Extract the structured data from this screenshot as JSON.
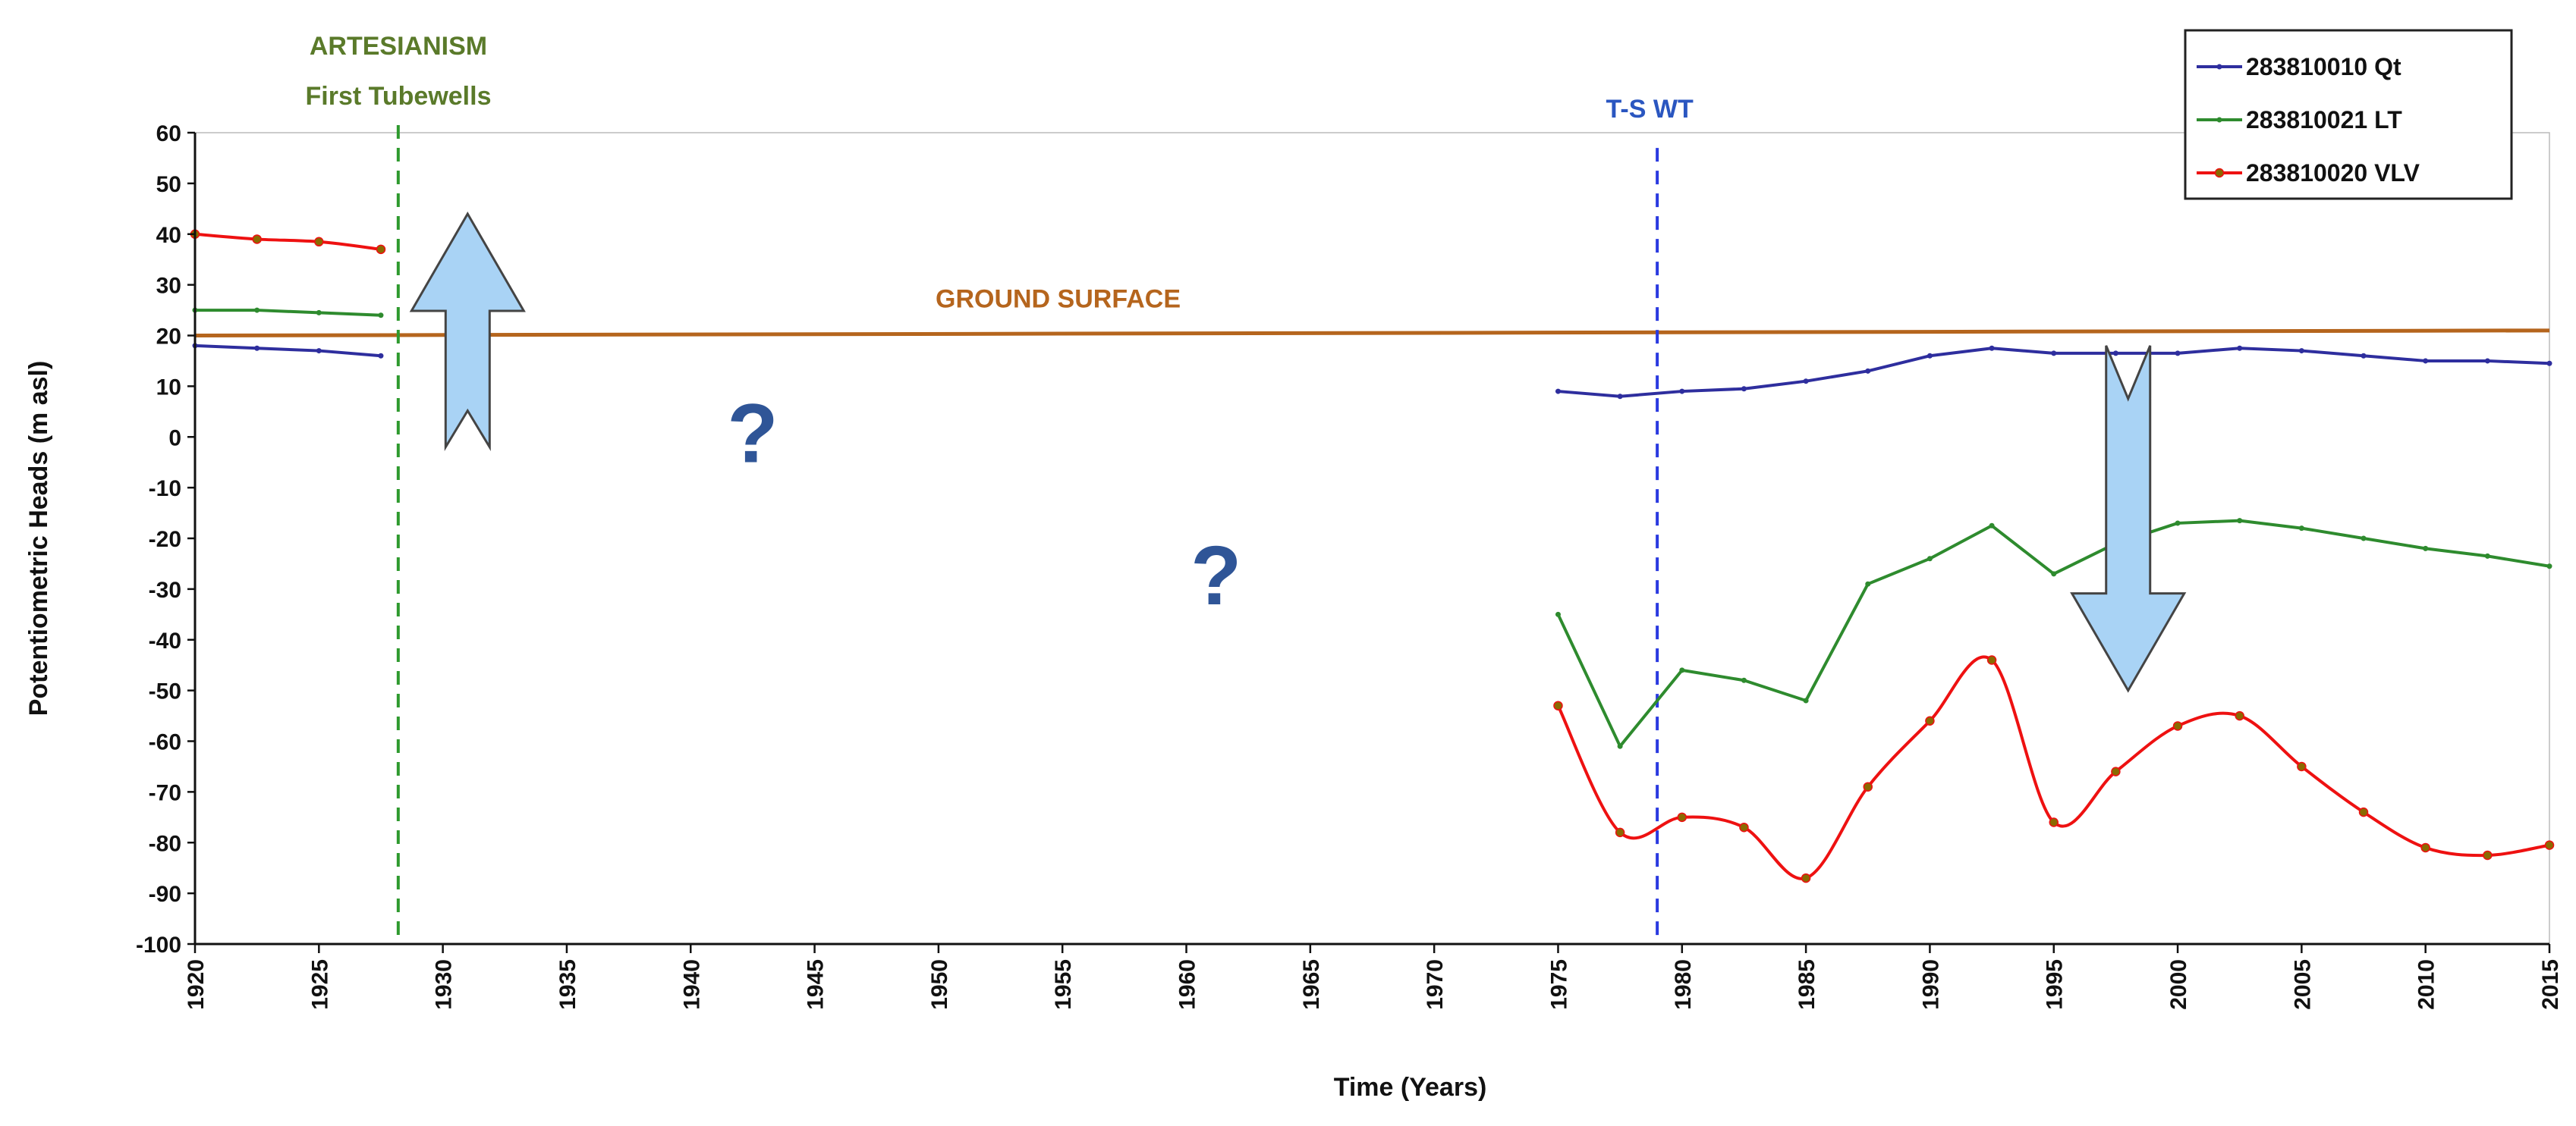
{
  "colors": {
    "qt": "#2e2e9e",
    "lt": "#2e8b2e",
    "vlv": "#ee1111",
    "vlv_marker": "#8a6a00",
    "ground": "#b5651d",
    "artesian_line": "#2e9a2e",
    "artesian_text": "#5a7a2a",
    "tswt_line": "#2a3ae0",
    "tswt_text": "#2a56c0",
    "arrow_fill": "#a9d3f5",
    "arrow_stroke": "#444444",
    "qmark": "#2f5597"
  },
  "chart_data": {
    "type": "line",
    "title": "",
    "xlabel": "Time  (Years)",
    "ylabel": "Potentiometric  Heads  (m asl)",
    "xlim": [
      1920,
      2015
    ],
    "ylim": [
      -100,
      60
    ],
    "x_ticks": [
      "1920",
      "1925",
      "1930",
      "1935",
      "1940",
      "1945",
      "1950",
      "1955",
      "1960",
      "1965",
      "1970",
      "1975",
      "1980",
      "1985",
      "1990",
      "1995",
      "2000",
      "2005",
      "2010",
      "2015"
    ],
    "y_ticks": [
      "60",
      "50",
      "40",
      "30",
      "20",
      "10",
      "0",
      "-10",
      "-20",
      "-30",
      "-40",
      "-50",
      "-60",
      "-70",
      "-80",
      "-90",
      "-100"
    ],
    "legend_position": "top-right",
    "series": [
      {
        "name": "283810010 Qt",
        "color_key": "qt",
        "segments": [
          [
            [
              1920,
              18
            ],
            [
              1922.5,
              17.5
            ],
            [
              1925,
              17
            ],
            [
              1927.5,
              16
            ]
          ],
          [
            [
              1975,
              9
            ],
            [
              1977.5,
              8
            ],
            [
              1980,
              9
            ],
            [
              1982.5,
              9.5
            ],
            [
              1985,
              11
            ],
            [
              1987.5,
              13
            ],
            [
              1990,
              16
            ],
            [
              1992.5,
              17.5
            ],
            [
              1995,
              16.5
            ],
            [
              1997.5,
              16.5
            ],
            [
              2000,
              16.5
            ],
            [
              2002.5,
              17.5
            ],
            [
              2005,
              17
            ],
            [
              2007.5,
              16
            ],
            [
              2010,
              15
            ],
            [
              2012.5,
              15
            ],
            [
              2015,
              14.5
            ]
          ]
        ]
      },
      {
        "name": "283810021 LT",
        "color_key": "lt",
        "segments": [
          [
            [
              1920,
              25
            ],
            [
              1922.5,
              25
            ],
            [
              1925,
              24.5
            ],
            [
              1927.5,
              24
            ]
          ],
          [
            [
              1975,
              -35
            ],
            [
              1977.5,
              -61
            ],
            [
              1980,
              -46
            ],
            [
              1982.5,
              -48
            ],
            [
              1985,
              -52
            ],
            [
              1987.5,
              -29
            ],
            [
              1990,
              -24
            ],
            [
              1992.5,
              -17.5
            ],
            [
              1995,
              -27
            ],
            [
              1997.5,
              -21
            ],
            [
              2000,
              -17
            ],
            [
              2002.5,
              -16.5
            ],
            [
              2005,
              -18
            ],
            [
              2007.5,
              -20
            ],
            [
              2010,
              -22
            ],
            [
              2012.5,
              -23.5
            ],
            [
              2015,
              -25.5
            ]
          ]
        ]
      },
      {
        "name": "283810020 VLV",
        "color_key": "vlv",
        "segments": [
          [
            [
              1920,
              40
            ],
            [
              1922.5,
              39
            ],
            [
              1925,
              38.5
            ],
            [
              1927.5,
              37
            ]
          ],
          [
            [
              1975,
              -53
            ],
            [
              1977.5,
              -78
            ],
            [
              1980,
              -75
            ],
            [
              1982.5,
              -77
            ],
            [
              1985,
              -87
            ],
            [
              1987.5,
              -69
            ],
            [
              1990,
              -56
            ],
            [
              1992.5,
              -44
            ],
            [
              1995,
              -76
            ],
            [
              1997.5,
              -66
            ],
            [
              2000,
              -57
            ],
            [
              2002.5,
              -55
            ],
            [
              2005,
              -65
            ],
            [
              2007.5,
              -74
            ],
            [
              2010,
              -81
            ],
            [
              2012.5,
              -82.5
            ],
            [
              2015,
              -80.5
            ]
          ]
        ]
      }
    ],
    "ground_surface": {
      "label": "GROUND SURFACE",
      "points": [
        [
          1920,
          20
        ],
        [
          2015,
          21
        ]
      ]
    },
    "annotations": {
      "artesianism": {
        "line1": "ARTESIANISM",
        "line2": "First Tubewells",
        "year": 1928.2
      },
      "tswt": {
        "label": "T-S WT",
        "year": 1979
      },
      "question_marks": [
        {
          "text": "?",
          "year": 1942.5,
          "value": 1
        },
        {
          "text": "?",
          "year": 1961.2,
          "value": -27
        }
      ],
      "arrow_up": {
        "year": 1931,
        "from": -2,
        "to": 44,
        "direction": "up"
      },
      "arrow_down": {
        "year": 1998,
        "from": 18,
        "to": -50,
        "direction": "down"
      }
    }
  }
}
